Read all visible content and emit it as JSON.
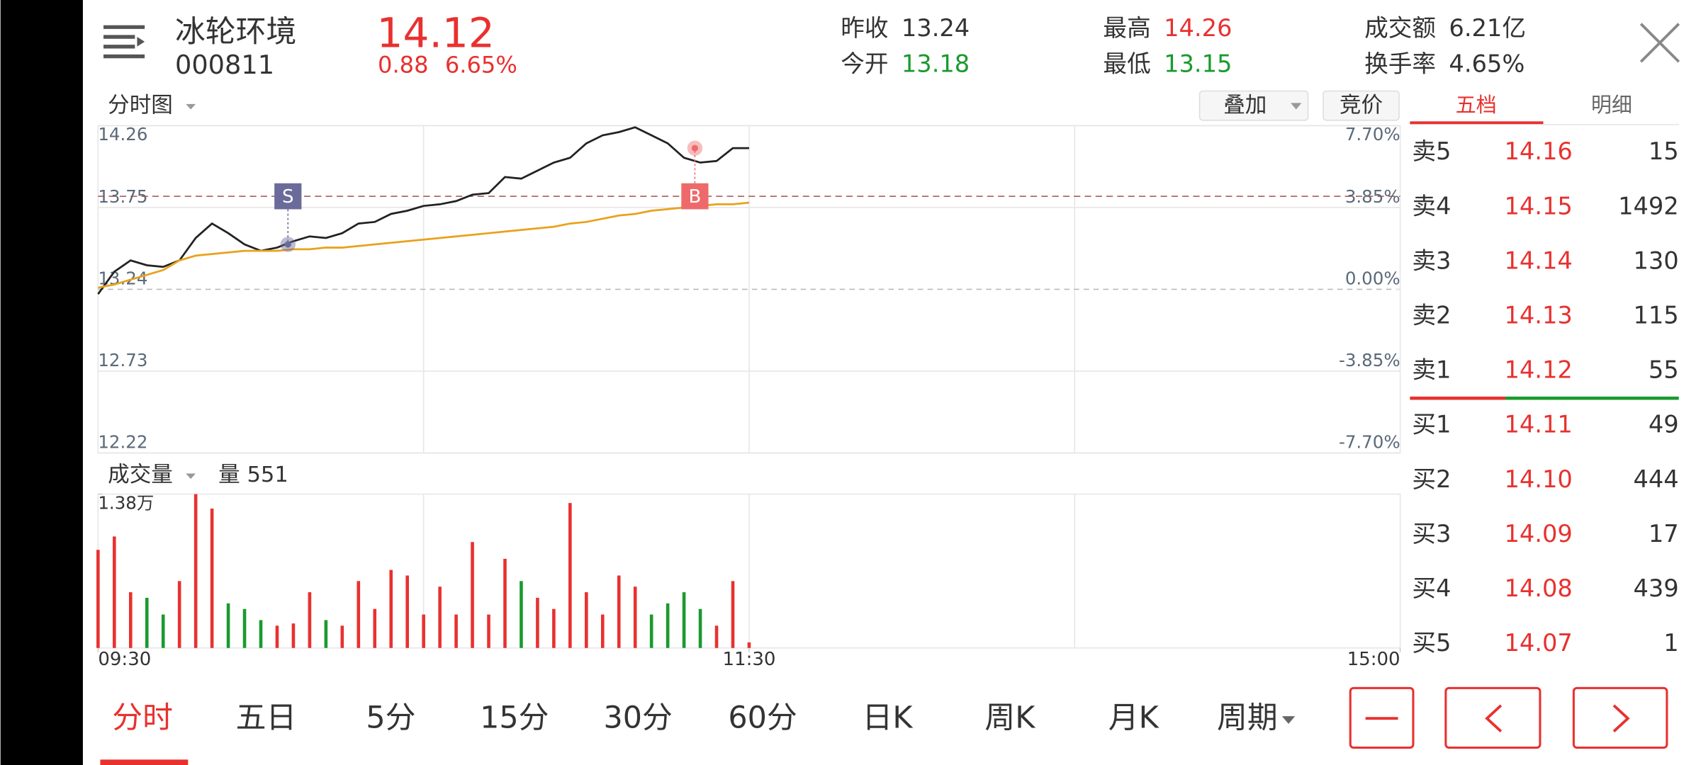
{
  "header": {
    "name": "冰轮环境",
    "code": "000811",
    "price": "14.12",
    "change": "0.88",
    "change_pct": "6.65%",
    "stats": [
      {
        "label": "昨收",
        "value": "13.24"
      },
      {
        "label": "今开",
        "value": "13.18",
        "color": "#1a9a2e"
      },
      {
        "label": "最高",
        "value": "14.26",
        "color": "#e8312f"
      },
      {
        "label": "最低",
        "value": "13.15",
        "color": "#1a9a2e"
      },
      {
        "label": "成交额",
        "value": "6.21亿"
      },
      {
        "label": "换手率",
        "value": "4.65%"
      }
    ]
  },
  "chart_menu": "分时图",
  "buttons": [
    "叠加",
    "竞价"
  ],
  "order_book": {
    "tabs": [
      "五档",
      "明细"
    ],
    "rows": [
      {
        "label": "卖5",
        "price": "14.16",
        "volume": "15"
      },
      {
        "label": "卖4",
        "price": "14.15",
        "volume": "1492"
      },
      {
        "label": "卖3",
        "price": "14.14",
        "volume": "130"
      },
      {
        "label": "卖2",
        "price": "14.13",
        "volume": "115"
      },
      {
        "label": "卖1",
        "price": "14.12",
        "volume": "55"
      },
      {
        "label": "买1",
        "price": "14.11",
        "volume": "49"
      },
      {
        "label": "买2",
        "price": "14.10",
        "volume": "444"
      },
      {
        "label": "买3",
        "price": "14.09",
        "volume": "17"
      },
      {
        "label": "买4",
        "price": "14.08",
        "volume": "439"
      },
      {
        "label": "买5",
        "price": "14.07",
        "volume": "1"
      }
    ]
  },
  "chart_data": {
    "type": "line",
    "x": [
      0,
      3,
      6,
      9,
      12,
      15,
      18,
      21,
      24,
      27,
      30,
      33,
      36,
      39,
      42,
      45,
      48,
      51,
      54,
      57,
      60,
      63,
      66,
      69,
      72,
      75,
      78,
      81,
      84,
      87,
      90,
      93,
      96,
      99,
      102,
      105,
      108,
      111,
      114,
      117,
      120
    ],
    "xlim": [
      0,
      240
    ],
    "xticks": [
      {
        "value": 0,
        "label": "09:30"
      },
      {
        "value": 120,
        "label": "11:30"
      },
      {
        "value": 240,
        "label": "15:00"
      }
    ],
    "ylim": [
      12.22,
      14.26
    ],
    "yticks": [
      12.22,
      12.73,
      13.24,
      13.75,
      14.26
    ],
    "y2lim": [
      -7.7,
      7.7
    ],
    "y2ticks": [
      {
        "value": 7.7,
        "label": "7.70%"
      },
      {
        "value": 3.85,
        "label": "3.85%"
      },
      {
        "value": 0,
        "label": "0.00%"
      },
      {
        "value": -3.85,
        "label": "-3.85%"
      },
      {
        "value": -7.7,
        "label": "-7.70%"
      }
    ],
    "reference_price": 13.82,
    "series": [
      {
        "color": "#222222",
        "values": [
          13.21,
          13.35,
          13.42,
          13.39,
          13.38,
          13.42,
          13.56,
          13.65,
          13.59,
          13.52,
          13.48,
          13.5,
          13.54,
          13.57,
          13.56,
          13.59,
          13.65,
          13.66,
          13.71,
          13.73,
          13.76,
          13.77,
          13.79,
          13.83,
          13.84,
          13.94,
          13.93,
          13.98,
          14.03,
          14.06,
          14.15,
          14.2,
          14.22,
          14.25,
          14.2,
          14.15,
          14.06,
          14.03,
          14.04,
          14.12,
          14.12
        ]
      },
      {
        "color": "#e8a21c",
        "values": [
          13.25,
          13.27,
          13.3,
          13.33,
          13.36,
          13.42,
          13.45,
          13.46,
          13.47,
          13.48,
          13.48,
          13.48,
          13.49,
          13.49,
          13.5,
          13.5,
          13.51,
          13.52,
          13.53,
          13.54,
          13.55,
          13.56,
          13.57,
          13.58,
          13.59,
          13.6,
          13.61,
          13.62,
          13.63,
          13.65,
          13.66,
          13.68,
          13.7,
          13.71,
          13.73,
          13.74,
          13.75,
          13.76,
          13.77,
          13.77,
          13.78
        ]
      }
    ],
    "markers": [
      {
        "label": "S",
        "x": 35,
        "price": 13.52,
        "color": "#6b6b9b"
      },
      {
        "label": "B",
        "x": 110,
        "price": 14.12,
        "color": "#ee6a6a"
      }
    ],
    "volume": {
      "label": "成交量",
      "readout": "量 551",
      "ylim": [
        0,
        13800
      ],
      "yticks": [
        {
          "value": 13800,
          "label": "1.38万"
        }
      ],
      "up_color": "#e8312f",
      "down_color": "#1a9a2e",
      "values": [
        8800,
        10000,
        5000,
        4500,
        3000,
        6000,
        13800,
        12500,
        4000,
        3500,
        2500,
        2000,
        2200,
        5000,
        2500,
        2000,
        6000,
        3500,
        7000,
        6500,
        3000,
        5500,
        3000,
        9500,
        3000,
        8000,
        6000,
        4500,
        3500,
        13000,
        5000,
        3000,
        6500,
        5500,
        3000,
        4000,
        5000,
        3500,
        2000,
        6000,
        500
      ]
    }
  },
  "period_tabs": [
    "分时",
    "五日",
    "5分",
    "15分",
    "30分",
    "60分",
    "日K",
    "周K",
    "月K",
    "周期"
  ]
}
